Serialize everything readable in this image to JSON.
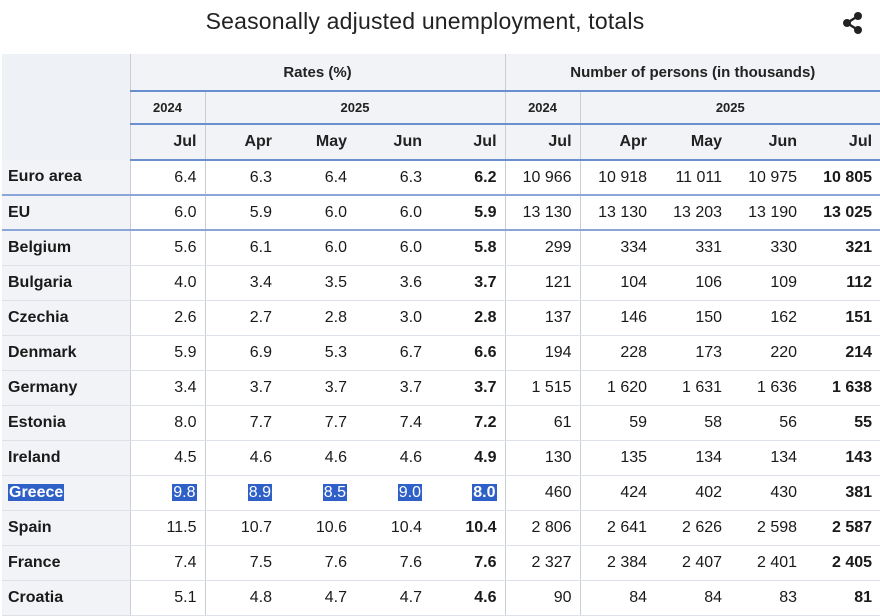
{
  "title": "Seasonally adjusted unemployment, totals",
  "icons": {
    "share": "share-icon"
  },
  "header": {
    "groups": [
      "Rates (%)",
      "Number of persons (in thousands)"
    ],
    "years": [
      "2024",
      "2025",
      "2024",
      "2025"
    ],
    "months": [
      "Jul",
      "Apr",
      "May",
      "Jun",
      "Jul",
      "Jul",
      "Apr",
      "May",
      "Jun",
      "Jul"
    ]
  },
  "rows": [
    {
      "country": "Euro area",
      "rates": [
        "6.4",
        "6.3",
        "6.4",
        "6.3",
        "6.2"
      ],
      "persons": [
        "10 966",
        "10 918",
        "11 011",
        "10 975",
        "10 805"
      ]
    },
    {
      "country": "EU",
      "rates": [
        "6.0",
        "5.9",
        "6.0",
        "6.0",
        "5.9"
      ],
      "persons": [
        "13 130",
        "13 130",
        "13 203",
        "13 190",
        "13 025"
      ]
    },
    {
      "country": "Belgium",
      "rates": [
        "5.6",
        "6.1",
        "6.0",
        "6.0",
        "5.8"
      ],
      "persons": [
        "299",
        "334",
        "331",
        "330",
        "321"
      ]
    },
    {
      "country": "Bulgaria",
      "rates": [
        "4.0",
        "3.4",
        "3.5",
        "3.6",
        "3.7"
      ],
      "persons": [
        "121",
        "104",
        "106",
        "109",
        "112"
      ]
    },
    {
      "country": "Czechia",
      "rates": [
        "2.6",
        "2.7",
        "2.8",
        "3.0",
        "2.8"
      ],
      "persons": [
        "137",
        "146",
        "150",
        "162",
        "151"
      ]
    },
    {
      "country": "Denmark",
      "rates": [
        "5.9",
        "6.9",
        "5.3",
        "6.7",
        "6.6"
      ],
      "persons": [
        "194",
        "228",
        "173",
        "220",
        "214"
      ]
    },
    {
      "country": "Germany",
      "rates": [
        "3.4",
        "3.7",
        "3.7",
        "3.7",
        "3.7"
      ],
      "persons": [
        "1 515",
        "1 620",
        "1 631",
        "1 636",
        "1 638"
      ]
    },
    {
      "country": "Estonia",
      "rates": [
        "8.0",
        "7.7",
        "7.7",
        "7.4",
        "7.2"
      ],
      "persons": [
        "61",
        "59",
        "58",
        "56",
        "55"
      ]
    },
    {
      "country": "Ireland",
      "rates": [
        "4.5",
        "4.6",
        "4.6",
        "4.6",
        "4.9"
      ],
      "persons": [
        "130",
        "135",
        "134",
        "134",
        "143"
      ]
    },
    {
      "country": "Greece",
      "rates": [
        "9.8",
        "8.9",
        "8.5",
        "9.0",
        "8.0"
      ],
      "persons": [
        "460",
        "424",
        "402",
        "430",
        "381"
      ],
      "highlighted": true
    },
    {
      "country": "Spain",
      "rates": [
        "11.5",
        "10.7",
        "10.6",
        "10.4",
        "10.4"
      ],
      "persons": [
        "2 806",
        "2 641",
        "2 626",
        "2 598",
        "2 587"
      ]
    },
    {
      "country": "France",
      "rates": [
        "7.4",
        "7.5",
        "7.6",
        "7.6",
        "7.6"
      ],
      "persons": [
        "2 327",
        "2 384",
        "2 407",
        "2 401",
        "2 405"
      ]
    },
    {
      "country": "Croatia",
      "rates": [
        "5.1",
        "4.8",
        "4.7",
        "4.7",
        "4.6"
      ],
      "persons": [
        "90",
        "84",
        "84",
        "83",
        "81"
      ]
    }
  ],
  "colors": {
    "selection": "#2f60c8",
    "rule": "#6a8fcf",
    "header_bg": "#f1f3f6"
  }
}
